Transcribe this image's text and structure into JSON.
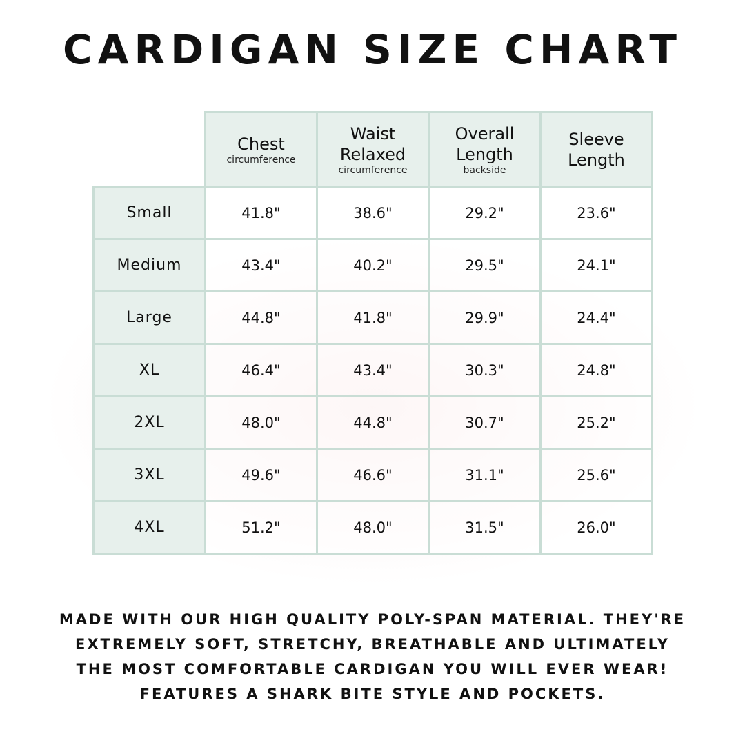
{
  "title": "CARDIGAN SIZE CHART",
  "columns": [
    {
      "label": "Chest",
      "sub": "circumference"
    },
    {
      "label": "Waist Relaxed",
      "sub": "circumference"
    },
    {
      "label": "Overall Length",
      "sub": "backside"
    },
    {
      "label": "Sleeve Length",
      "sub": ""
    }
  ],
  "rows": [
    {
      "size": "Small",
      "values": [
        "41.8\"",
        "38.6\"",
        "29.2\"",
        "23.6\""
      ]
    },
    {
      "size": "Medium",
      "values": [
        "43.4\"",
        "40.2\"",
        "29.5\"",
        "24.1\""
      ]
    },
    {
      "size": "Large",
      "values": [
        "44.8\"",
        "41.8\"",
        "29.9\"",
        "24.4\""
      ]
    },
    {
      "size": "XL",
      "values": [
        "46.4\"",
        "43.4\"",
        "30.3\"",
        "24.8\""
      ]
    },
    {
      "size": "2XL",
      "values": [
        "48.0\"",
        "44.8\"",
        "30.7\"",
        "25.2\""
      ]
    },
    {
      "size": "3XL",
      "values": [
        "49.6\"",
        "46.6\"",
        "31.1\"",
        "25.6\""
      ]
    },
    {
      "size": "4XL",
      "values": [
        "51.2\"",
        "48.0\"",
        "31.5\"",
        "26.0\""
      ]
    }
  ],
  "description": [
    "Made with our high quality poly-span material. They're",
    "extremely soft, stretchy, breathable and ultimately",
    "the most comfortable cardigan you will ever wear!",
    "Features a shark bite style and pockets."
  ],
  "colors": {
    "header_bg": "#e7f0ec",
    "border": "#c9ddd5"
  }
}
